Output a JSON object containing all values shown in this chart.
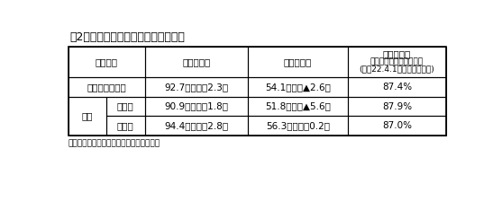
{
  "title": "第2表　専修学校（専門課程）の状況",
  "note": "注　（　）内は、前年同期との差である。",
  "col_header": [
    "区　　分",
    "就職希望率",
    "就職内定率",
    "〈参　考〉"
  ],
  "col_header2": [
    "",
    "",
    "",
    "前年度卒業学生の就職率"
  ],
  "col_header3": [
    "",
    "",
    "",
    "(平成22.4.1現在調査の結果)"
  ],
  "row1": [
    "専　修　学　校",
    "92.7％（　　2.3）",
    "54.1％（　▲2.6）",
    "87.4%"
  ],
  "row2_label_left": "うち",
  "row2_label_right": "男　子",
  "row2": [
    "90.9％（　　1.8）",
    "51.8％（　▲5.6）",
    "87.9%"
  ],
  "row3_label_right": "女　子",
  "row3": [
    "94.4％（　　2.8）",
    "56.3％（　　0.2）",
    "87.0%"
  ],
  "bg_color": "#ffffff",
  "text_color": "#000000",
  "title_fontsize": 9,
  "cell_fontsize": 7.5,
  "header_fontsize": 7.5,
  "small_fontsize": 6.5
}
